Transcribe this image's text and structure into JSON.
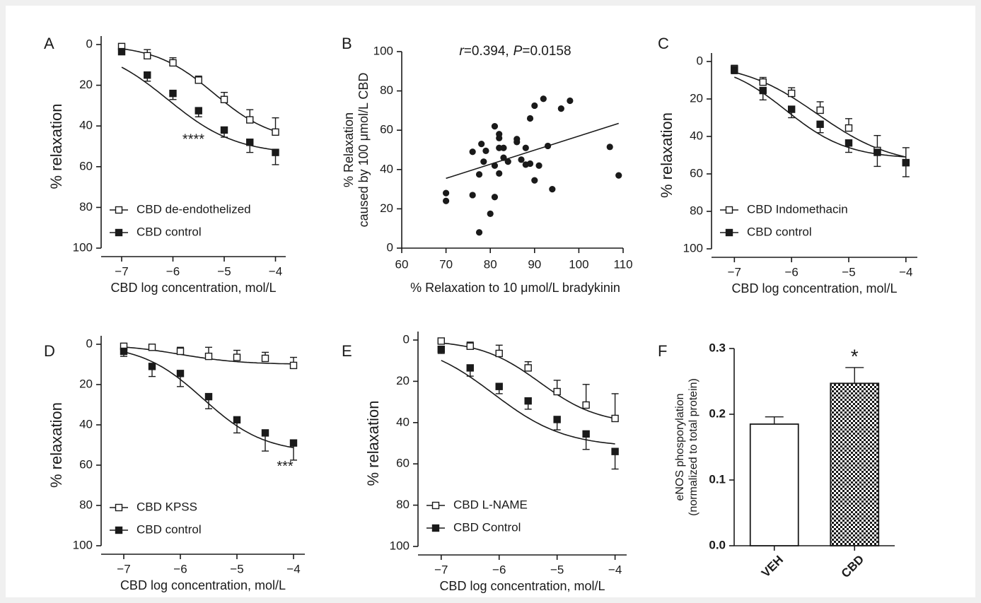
{
  "colors": {
    "background": "#f0f0f0",
    "frame": "#ffffff",
    "ink": "#1a1a1a"
  },
  "chart_data": [
    {
      "id": "A",
      "type": "line",
      "panel_label": "A",
      "xlabel": "CBD log concentration, mol/L",
      "ylabel": "% relaxation",
      "xlim": [
        -7.4,
        -3.8
      ],
      "ylim": [
        0,
        100
      ],
      "y_inverted": true,
      "x_ticks": [
        -7,
        -6,
        -5,
        -4
      ],
      "y_ticks": [
        0,
        20,
        40,
        60,
        80,
        100
      ],
      "annotation": "****",
      "legend_placement": "bottom-left",
      "series": [
        {
          "name": "CBD de-endothelized",
          "marker": "open-square",
          "x": [
            -7,
            -6.5,
            -6,
            -5.5,
            -5,
            -4.5,
            -4
          ],
          "y": [
            1,
            5.5,
            9,
            17.5,
            27,
            37,
            43
          ],
          "err": [
            1.5,
            3,
            2.5,
            2,
            3.5,
            5,
            7
          ],
          "fit": {
            "bottom": 0,
            "top": 48,
            "logec50": -5.2,
            "hill": 0.75
          }
        },
        {
          "name": "CBD control",
          "marker": "filled-square",
          "x": [
            -7,
            -6.5,
            -6,
            -5.5,
            -5,
            -4.5,
            -4
          ],
          "y": [
            3.5,
            15,
            24,
            32.5,
            42,
            48,
            53
          ],
          "err": [
            1.5,
            3,
            3,
            3,
            3.5,
            5,
            6
          ],
          "fit": {
            "bottom": 0,
            "top": 54,
            "logec50": -6.1,
            "hill": 0.65
          }
        }
      ]
    },
    {
      "id": "B",
      "type": "scatter",
      "panel_label": "B",
      "xlabel": "% Relaxation to 10 μmol/L bradykinin",
      "ylabel_line1": "% Relaxation",
      "ylabel_line2": "caused by 100 μmol/L CBD",
      "xlim": [
        60,
        110
      ],
      "ylim": [
        0,
        100
      ],
      "x_ticks": [
        60,
        70,
        80,
        90,
        100,
        110
      ],
      "y_ticks": [
        0,
        20,
        40,
        60,
        80,
        100
      ],
      "stat_r_label": "r",
      "stat_r_value": "=0.394,",
      "stat_p_label": "P",
      "stat_p_value": "=0.0158",
      "points": [
        [
          70,
          28
        ],
        [
          70,
          24
        ],
        [
          76,
          49
        ],
        [
          76,
          27
        ],
        [
          77.5,
          37.5
        ],
        [
          77.5,
          8
        ],
        [
          78,
          53
        ],
        [
          78.5,
          44
        ],
        [
          79,
          49.5
        ],
        [
          80,
          17.5
        ],
        [
          81,
          62
        ],
        [
          81,
          42
        ],
        [
          81,
          26
        ],
        [
          82,
          58
        ],
        [
          82,
          56
        ],
        [
          82,
          51
        ],
        [
          82,
          38
        ],
        [
          83,
          51
        ],
        [
          83,
          46
        ],
        [
          84,
          44
        ],
        [
          86,
          55.5
        ],
        [
          86,
          54
        ],
        [
          87,
          45
        ],
        [
          88,
          51
        ],
        [
          88,
          42.5
        ],
        [
          89,
          43
        ],
        [
          89,
          66
        ],
        [
          90,
          72.5
        ],
        [
          90,
          34.5
        ],
        [
          91,
          42
        ],
        [
          92,
          76
        ],
        [
          93,
          52
        ],
        [
          94,
          30
        ],
        [
          96,
          71
        ],
        [
          98,
          75
        ],
        [
          107,
          51.5
        ],
        [
          109,
          37
        ]
      ],
      "regression": {
        "x": [
          70,
          109
        ],
        "y": [
          35.5,
          63.5
        ]
      }
    },
    {
      "id": "C",
      "type": "line",
      "panel_label": "C",
      "xlabel": "CBD log concentration, mol/L",
      "ylabel": "% relaxation",
      "xlim": [
        -7.4,
        -3.8
      ],
      "ylim": [
        0,
        100
      ],
      "y_inverted": true,
      "x_ticks": [
        -7,
        -6,
        -5,
        -4
      ],
      "y_ticks": [
        0,
        20,
        40,
        60,
        80,
        100
      ],
      "legend_placement": "bottom-left",
      "series": [
        {
          "name": "CBD Indomethacin",
          "marker": "open-square",
          "x": [
            -7,
            -6.5,
            -6,
            -5.5,
            -5,
            -4.5,
            -4
          ],
          "y": [
            4,
            11,
            17,
            26,
            35.5,
            47.5,
            54
          ],
          "err": [
            2,
            2.5,
            3,
            4.5,
            5,
            8,
            8
          ],
          "fit": {
            "bottom": 0,
            "top": 56,
            "logec50": -5.55,
            "hill": 0.65
          }
        },
        {
          "name": "CBD control",
          "marker": "filled-square",
          "x": [
            -7,
            -6.5,
            -6,
            -5.5,
            -5,
            -4.5,
            -4
          ],
          "y": [
            4.5,
            15.5,
            25.5,
            33.5,
            43.5,
            48.5,
            54
          ],
          "err": [
            2,
            5,
            4.5,
            4.5,
            5,
            7.5,
            7.5
          ],
          "fit": {
            "bottom": 0,
            "top": 52,
            "logec50": -6.1,
            "hill": 0.8
          }
        }
      ]
    },
    {
      "id": "D",
      "type": "line",
      "panel_label": "D",
      "xlabel": "CBD log concentration, mol/L",
      "ylabel": "% relaxation",
      "xlim": [
        -7.4,
        -3.8
      ],
      "ylim": [
        0,
        100
      ],
      "y_inverted": true,
      "x_ticks": [
        -7,
        -6,
        -5,
        -4
      ],
      "y_ticks": [
        0,
        20,
        40,
        60,
        80,
        100
      ],
      "annotation": "***",
      "legend_placement": "bottom-left",
      "series": [
        {
          "name": "CBD KPSS",
          "marker": "open-square",
          "x": [
            -7,
            -6.5,
            -6,
            -5.5,
            -5,
            -4.5,
            -4
          ],
          "y": [
            1,
            1.5,
            3.5,
            6,
            6.5,
            7,
            10.5
          ],
          "err": [
            1,
            1,
            2,
            4.5,
            3.5,
            3,
            4
          ],
          "fit": {
            "bottom": 0,
            "top": 10,
            "logec50": -6.0,
            "hill": 0.8
          }
        },
        {
          "name": "CBD control",
          "marker": "filled-square",
          "x": [
            -7,
            -6.5,
            -6,
            -5.5,
            -5,
            -4.5,
            -4
          ],
          "y": [
            3.5,
            11,
            14.5,
            26,
            37.5,
            44,
            49
          ],
          "err": [
            2.5,
            5,
            6.5,
            6,
            6.5,
            9,
            8.5
          ],
          "fit": {
            "bottom": 0,
            "top": 54,
            "logec50": -5.6,
            "hill": 0.8
          }
        }
      ]
    },
    {
      "id": "E",
      "type": "line",
      "panel_label": "E",
      "xlabel": "CBD log concentration, mol/L",
      "ylabel": "% relaxation",
      "xlim": [
        -7.4,
        -3.8
      ],
      "ylim": [
        0,
        100
      ],
      "y_inverted": true,
      "x_ticks": [
        -7,
        -6,
        -5,
        -4
      ],
      "y_ticks": [
        0,
        20,
        40,
        60,
        80,
        100
      ],
      "legend_placement": "bottom-left",
      "series": [
        {
          "name": "CBD L-NAME",
          "marker": "open-square",
          "x": [
            -7,
            -6.5,
            -6,
            -5.5,
            -5,
            -4.5,
            -4
          ],
          "y": [
            0.5,
            3,
            6.5,
            13.5,
            25,
            31.5,
            38
          ],
          "err": [
            0.5,
            2,
            4,
            3,
            5.5,
            10,
            12
          ],
          "fit": {
            "bottom": 0,
            "top": 41,
            "logec50": -5.3,
            "hill": 0.85
          }
        },
        {
          "name": "CBD Control",
          "marker": "filled-square",
          "x": [
            -7,
            -6.5,
            -6,
            -5.5,
            -5,
            -4.5,
            -4
          ],
          "y": [
            4.5,
            13.5,
            22.5,
            29.5,
            38.5,
            45.5,
            54
          ],
          "err": [
            2,
            4,
            3.5,
            4,
            5,
            7.5,
            8.5
          ],
          "fit": {
            "bottom": 0,
            "top": 52,
            "logec50": -6.1,
            "hill": 0.7
          }
        }
      ]
    },
    {
      "id": "F",
      "type": "bar",
      "panel_label": "F",
      "ylabel_line1": "eNOS phosporylation",
      "ylabel_line2": "(normalized to total protein)",
      "ylim": [
        0,
        0.3
      ],
      "y_ticks": [
        "0.0",
        "0.1",
        "0.2",
        "0.3"
      ],
      "categories": [
        "VEH",
        "CBD"
      ],
      "values": [
        0.185,
        0.247
      ],
      "err": [
        0.011,
        0.024
      ],
      "fills": [
        "open",
        "checker"
      ],
      "annotation": "*"
    }
  ]
}
